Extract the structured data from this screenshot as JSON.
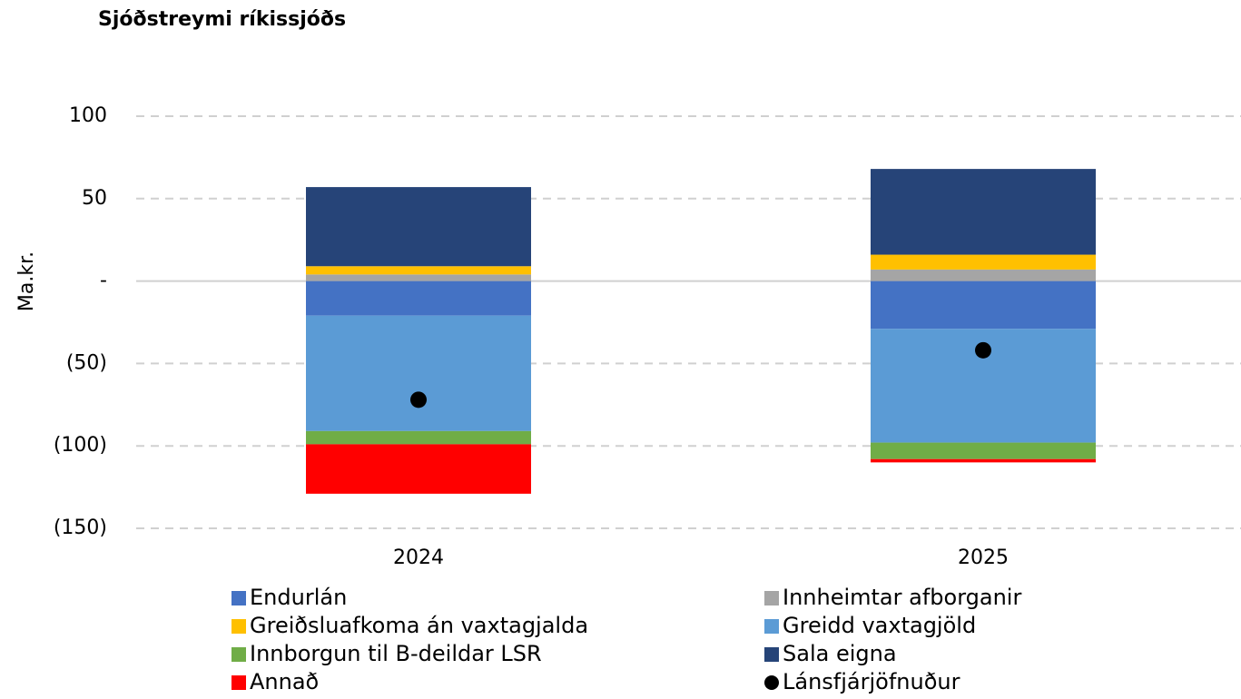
{
  "chart_data": {
    "type": "stacked_bar",
    "title": "Sjóðstreymi ríkissjóðs",
    "y_label": "Ma.kr.",
    "categories": [
      "2024",
      "2025"
    ],
    "series": [
      {
        "name": "Endurlán",
        "color": "#4472c4",
        "values": [
          -21,
          -29
        ]
      },
      {
        "name": "Innheimtar afborganir",
        "color": "#a5a5a5",
        "values": [
          4,
          7
        ]
      },
      {
        "name": "Greiðsluafkoma án vaxtagjalda",
        "color": "#ffc000",
        "values": [
          5,
          9
        ]
      },
      {
        "name": "Greidd vaxtagjöld",
        "color": "#5b9bd5",
        "values": [
          -70,
          -69
        ]
      },
      {
        "name": "Innborgun til B-deildar LSR",
        "color": "#70ad47",
        "values": [
          -8,
          -10
        ]
      },
      {
        "name": "Sala eigna",
        "color": "#264478",
        "values": [
          48,
          52
        ]
      },
      {
        "name": "Annað",
        "color": "#ff0000",
        "values": [
          -30,
          -2
        ]
      }
    ],
    "dot_series": {
      "name": "Lánsfjárjöfnuður",
      "color": "#000000",
      "values": [
        -72,
        -42
      ]
    },
    "ylim": [
      -150,
      100
    ],
    "yticks": [
      100,
      50,
      {
        "value": 0,
        "label": "-"
      },
      {
        "value": -50,
        "label": "(50)"
      },
      {
        "value": -100,
        "label": "(100)"
      },
      {
        "value": -150,
        "label": "(150)"
      }
    ],
    "grid": true
  }
}
